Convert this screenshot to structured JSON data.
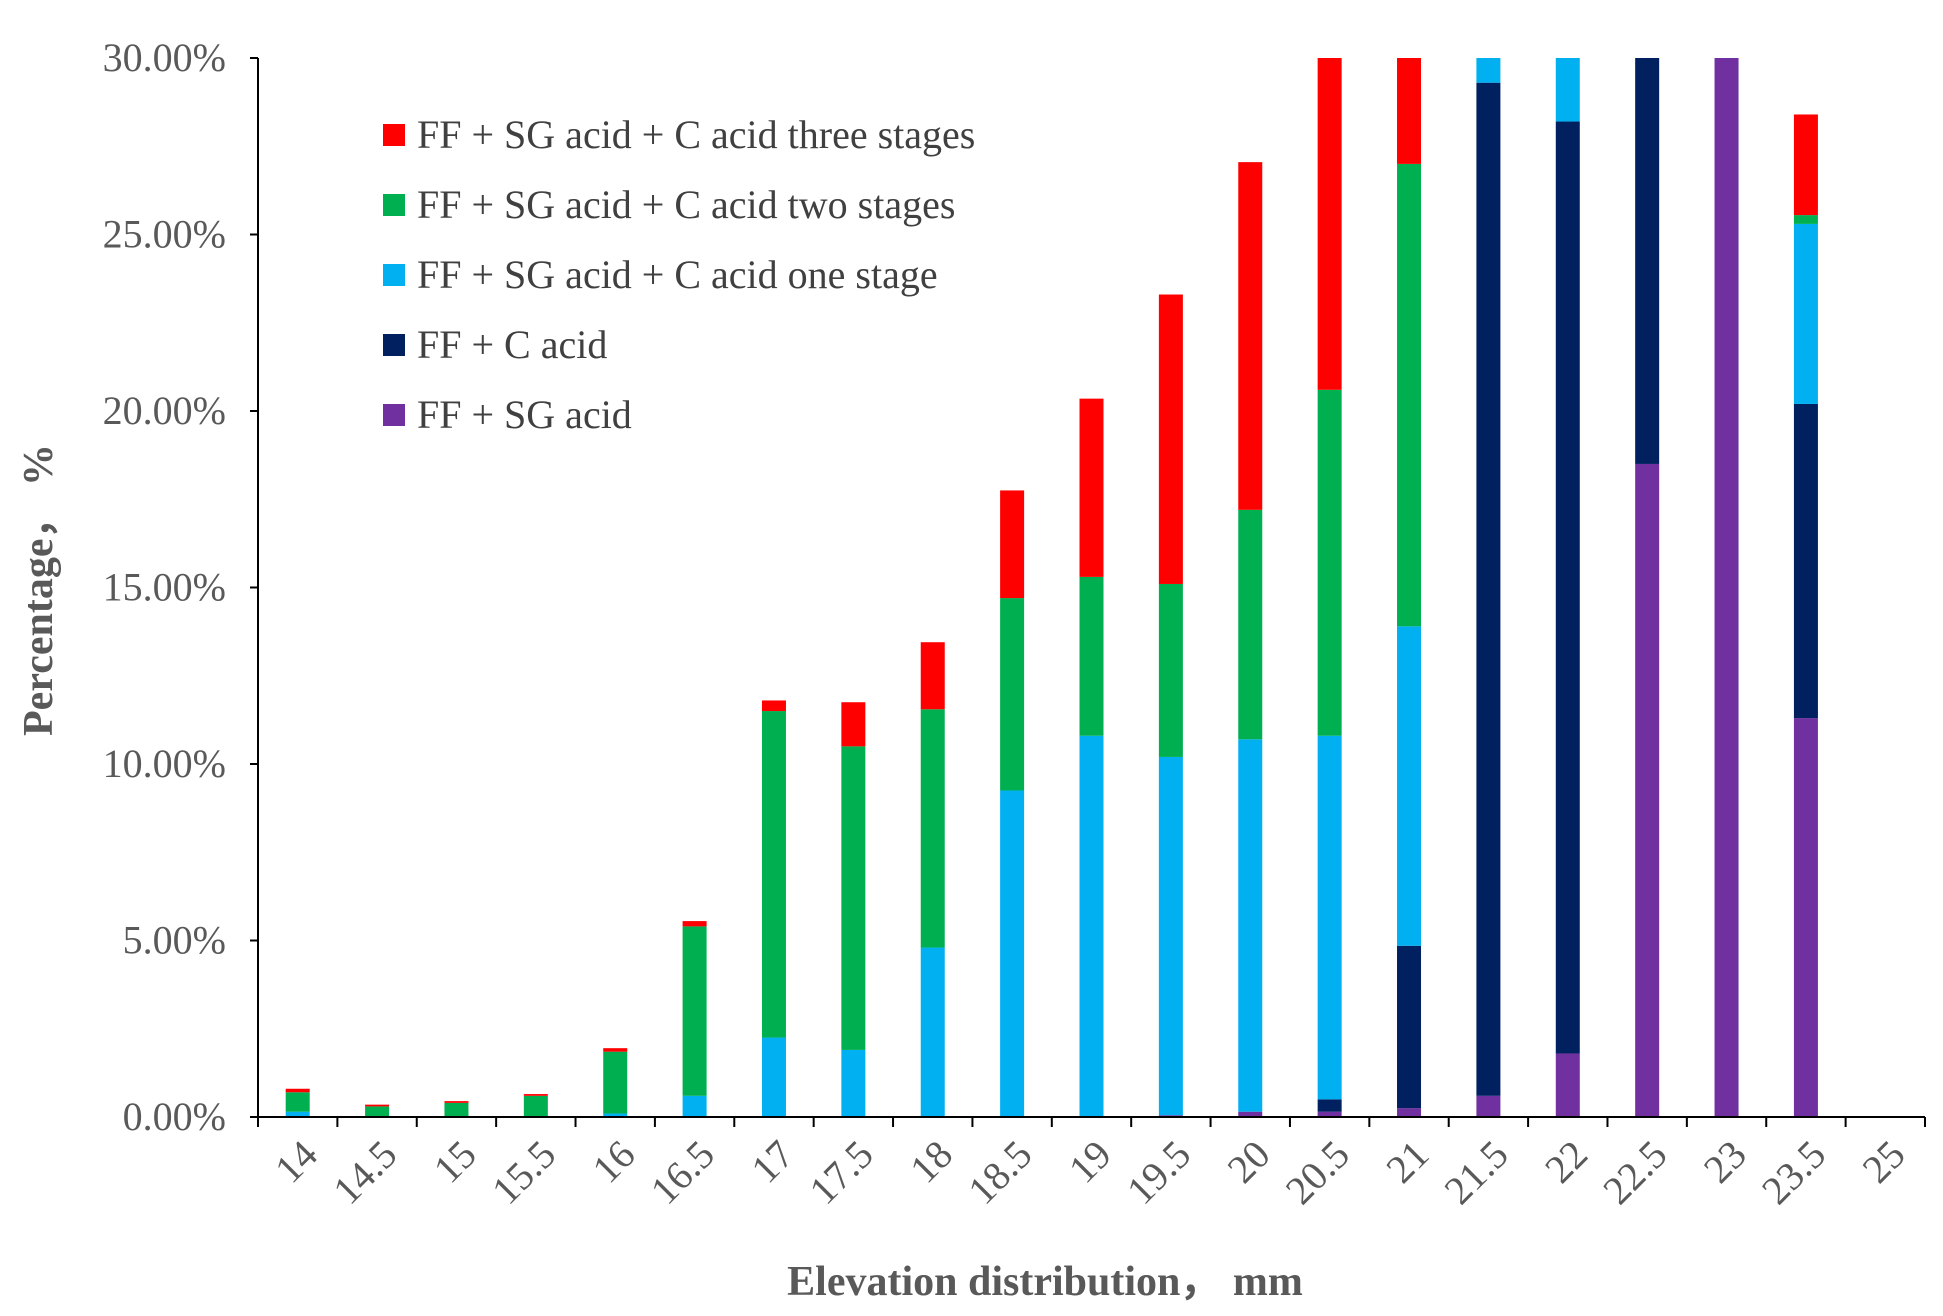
{
  "chart_data": {
    "type": "bar",
    "stacked": true,
    "title": "",
    "xlabel": "Elevation distribution，  mm",
    "ylabel": "Percentage，  %",
    "ylim": [
      0,
      30
    ],
    "y_ticks": [
      "0.00%",
      "5.00%",
      "10.00%",
      "15.00%",
      "20.00%",
      "25.00%",
      "30.00%"
    ],
    "y_tick_values": [
      0,
      5,
      10,
      15,
      20,
      25,
      30
    ],
    "legend_position": "top-left",
    "categories": [
      "14",
      "14.5",
      "15",
      "15.5",
      "16",
      "16.5",
      "17",
      "17.5",
      "18",
      "18.5",
      "19",
      "19.5",
      "20",
      "20.5",
      "21",
      "21.5",
      "22",
      "22.5",
      "23",
      "23.5",
      "25"
    ],
    "series": [
      {
        "name": "FF + SG acid",
        "color": "#7030A0",
        "values": [
          0,
          0,
          0,
          0,
          0,
          0,
          0,
          0,
          0,
          0,
          0,
          0.05,
          0.15,
          0.15,
          0.25,
          0.6,
          1.8,
          18.5,
          30.0,
          11.3,
          0
        ]
      },
      {
        "name": "FF + C acid",
        "color": "#002060",
        "values": [
          0,
          0,
          0,
          0,
          0,
          0,
          0,
          0,
          0,
          0,
          0,
          0,
          0,
          0.35,
          4.6,
          28.7,
          26.4,
          11.5,
          0,
          8.9,
          0
        ]
      },
      {
        "name": "FF + SG acid + C acid one stage",
        "color": "#00B0F0",
        "values": [
          0.15,
          0,
          0,
          0,
          0.1,
          0.6,
          2.25,
          1.9,
          4.8,
          9.25,
          10.8,
          10.15,
          10.55,
          10.3,
          9.05,
          0.7,
          1.8,
          0,
          0,
          5.1,
          0
        ]
      },
      {
        "name": "FF + SG acid + C acid two stages",
        "color": "#00B050",
        "values": [
          0.55,
          0.3,
          0.4,
          0.6,
          1.75,
          4.8,
          9.25,
          8.6,
          6.75,
          5.45,
          4.5,
          4.9,
          6.5,
          9.8,
          13.1,
          0,
          0,
          0,
          0,
          0.25,
          0
        ]
      },
      {
        "name": "FF + SG acid + C acid three stages",
        "color": "#FF0000",
        "values": [
          0.1,
          0.05,
          0.05,
          0.05,
          0.1,
          0.15,
          0.3,
          1.25,
          1.9,
          3.05,
          5.05,
          8.2,
          9.85,
          9.45,
          3.0,
          0,
          0,
          0,
          0,
          2.85,
          0
        ]
      }
    ],
    "legend_order": [
      4,
      3,
      2,
      1,
      0
    ]
  }
}
